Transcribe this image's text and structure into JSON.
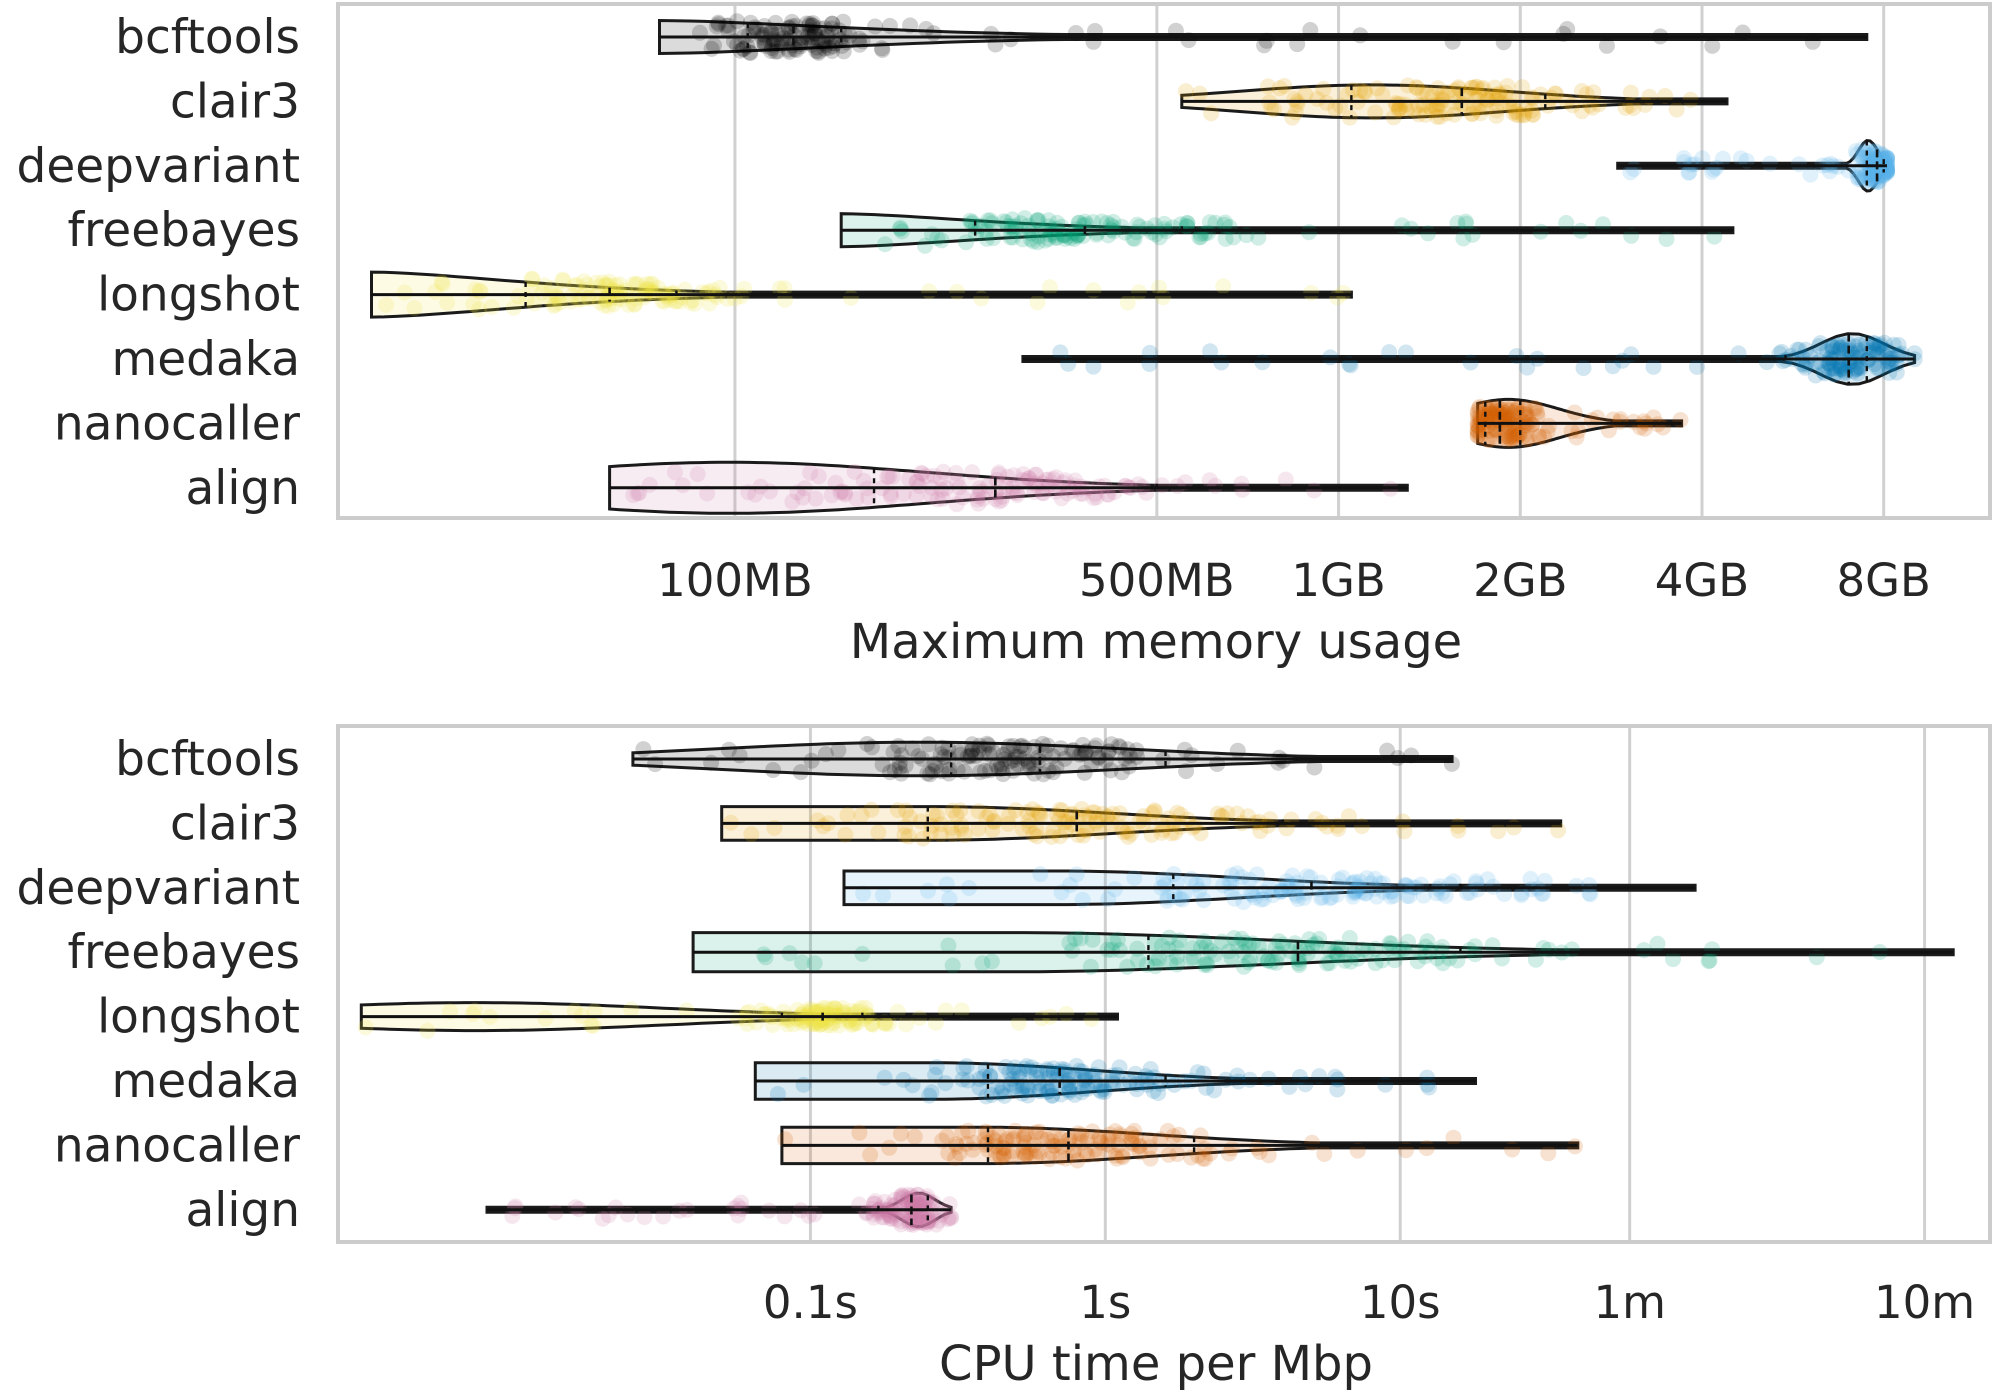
{
  "chart_data": [
    {
      "type": "violin",
      "xlabel": "Maximum memory usage",
      "x_scale": "log",
      "xlim_mb": [
        22,
        12000
      ],
      "ticks": [
        {
          "label": "100MB",
          "mb": 100
        },
        {
          "label": "500MB",
          "mb": 500
        },
        {
          "label": "1GB",
          "mb": 1000
        },
        {
          "label": "2GB",
          "mb": 2000
        },
        {
          "label": "4GB",
          "mb": 4000
        },
        {
          "label": "8GB",
          "mb": 8000
        }
      ],
      "grid": true,
      "categories": [
        "bcftools",
        "clair3",
        "deepvariant",
        "freebayes",
        "longshot",
        "medaka",
        "nanocaller",
        "align"
      ],
      "series": [
        {
          "name": "bcftools",
          "color": "#000000",
          "min": 75,
          "q1": 105,
          "median": 125,
          "q3": 150,
          "max": 7500,
          "shape": "decay",
          "body": 0.55
        },
        {
          "name": "clair3",
          "color": "#E69F00",
          "min": 550,
          "q1": 1050,
          "median": 1600,
          "q3": 2200,
          "max": 4400,
          "shape": "late",
          "body": 0.55
        },
        {
          "name": "deepvariant",
          "color": "#56B4E9",
          "min": 2900,
          "q1": 7500,
          "median": 7800,
          "q3": 8000,
          "max": 8100,
          "shape": "spike",
          "body": 0.85
        },
        {
          "name": "freebayes",
          "color": "#009E73",
          "min": 150,
          "q1": 250,
          "median": 380,
          "q3": 550,
          "max": 4500,
          "shape": "decay",
          "body": 0.55
        },
        {
          "name": "longshot",
          "color": "#F0E442",
          "min": 25,
          "q1": 45,
          "median": 62,
          "q3": 80,
          "max": 1050,
          "shape": "decay",
          "body": 0.75
        },
        {
          "name": "medaka",
          "color": "#0072B2",
          "min": 300,
          "q1": 5500,
          "median": 7000,
          "q3": 7500,
          "max": 9000,
          "shape": "spike",
          "body": 0.85
        },
        {
          "name": "nanocaller",
          "color": "#D55E00",
          "min": 1700,
          "q1": 1750,
          "median": 1850,
          "q3": 2000,
          "max": 3700,
          "shape": "early",
          "body": 0.8
        },
        {
          "name": "align",
          "color": "#CC79A7",
          "min": 62,
          "q1": 170,
          "median": 270,
          "q3": 500,
          "max": 1300,
          "shape": "early",
          "body": 0.85
        }
      ]
    },
    {
      "type": "violin",
      "xlabel": "CPU time per Mbp",
      "x_scale": "log",
      "xlim_s": [
        0.0025,
        1000
      ],
      "ticks": [
        {
          "label": "0.1s",
          "s": 0.1
        },
        {
          "label": "1s",
          "s": 1
        },
        {
          "label": "10s",
          "s": 10
        },
        {
          "label": "1m",
          "s": 60
        },
        {
          "label": "10m",
          "s": 600
        }
      ],
      "grid": true,
      "categories": [
        "bcftools",
        "clair3",
        "deepvariant",
        "freebayes",
        "longshot",
        "medaka",
        "nanocaller",
        "align"
      ],
      "series": [
        {
          "name": "bcftools",
          "color": "#000000",
          "min": 0.025,
          "q1": 0.3,
          "median": 0.6,
          "q3": 1.6,
          "max": 15,
          "shape": "late",
          "body": 0.6
        },
        {
          "name": "clair3",
          "color": "#E69F00",
          "min": 0.05,
          "q1": 0.25,
          "median": 0.8,
          "q3": 4,
          "max": 35,
          "shape": "flat",
          "body": 0.6
        },
        {
          "name": "deepvariant",
          "color": "#56B4E9",
          "min": 0.13,
          "q1": 1.7,
          "median": 5,
          "q3": 16,
          "max": 100,
          "shape": "flat",
          "body": 0.6
        },
        {
          "name": "freebayes",
          "color": "#009E73",
          "min": 0.04,
          "q1": 1.4,
          "median": 4.5,
          "q3": 16,
          "max": 750,
          "shape": "flat",
          "body": 0.7
        },
        {
          "name": "longshot",
          "color": "#F0E442",
          "min": 0.003,
          "q1": 0.08,
          "median": 0.11,
          "q3": 0.15,
          "max": 1.1,
          "shape": "early",
          "body": 0.5
        },
        {
          "name": "medaka",
          "color": "#0072B2",
          "min": 0.065,
          "q1": 0.4,
          "median": 0.7,
          "q3": 1.6,
          "max": 18,
          "shape": "flat",
          "body": 0.65
        },
        {
          "name": "nanocaller",
          "color": "#D55E00",
          "min": 0.08,
          "q1": 0.4,
          "median": 0.75,
          "q3": 2,
          "max": 40,
          "shape": "flat",
          "body": 0.65
        },
        {
          "name": "align",
          "color": "#CC79A7",
          "min": 0.008,
          "q1": 0.17,
          "median": 0.22,
          "q3": 0.25,
          "max": 0.3,
          "shape": "spike",
          "body": 0.6
        }
      ]
    }
  ]
}
